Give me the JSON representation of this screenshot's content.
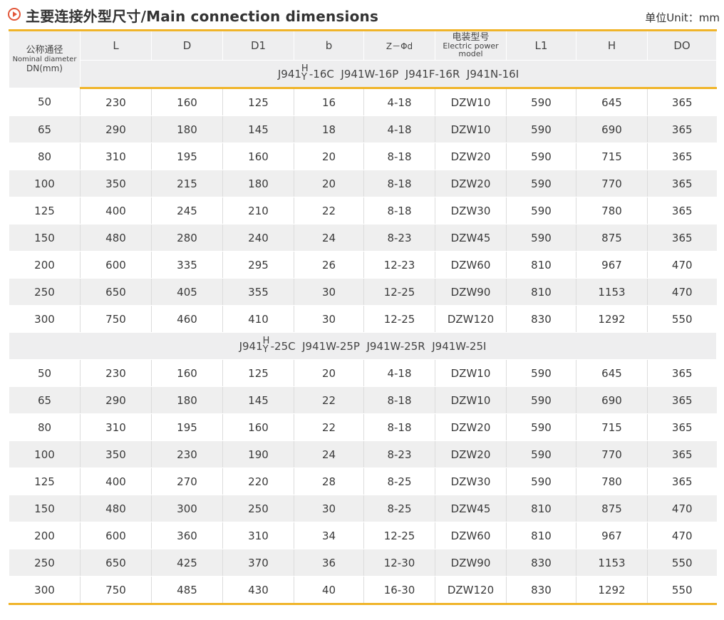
{
  "title": "主要连接外型尺寸/Main connection dimensions",
  "unit": "单位Unit：mm",
  "headers": {
    "dn_cn": "公称通径",
    "dn_en": "Nominal diameter",
    "dn_unit": "DN(mm)",
    "L": "L",
    "D": "D",
    "D1": "D1",
    "b": "b",
    "Z": "Z－Φd",
    "motor_cn": "电装型号",
    "motor_en": "Electric power model",
    "L1": "L1",
    "H": "H",
    "DO": "DO"
  },
  "groups": [
    {
      "model_prefix": "J941",
      "model_top": "H",
      "model_bot": "Y",
      "model_rest": "-16C  J941W-16P  J941F-16R  J941N-16I",
      "rows": [
        [
          "50",
          "230",
          "160",
          "125",
          "16",
          "4-18",
          "DZW10",
          "590",
          "645",
          "365"
        ],
        [
          "65",
          "290",
          "180",
          "145",
          "18",
          "4-18",
          "DZW10",
          "590",
          "690",
          "365"
        ],
        [
          "80",
          "310",
          "195",
          "160",
          "20",
          "8-18",
          "DZW20",
          "590",
          "715",
          "365"
        ],
        [
          "100",
          "350",
          "215",
          "180",
          "20",
          "8-18",
          "DZW20",
          "590",
          "770",
          "365"
        ],
        [
          "125",
          "400",
          "245",
          "210",
          "22",
          "8-18",
          "DZW30",
          "590",
          "780",
          "365"
        ],
        [
          "150",
          "480",
          "280",
          "240",
          "24",
          "8-23",
          "DZW45",
          "590",
          "875",
          "365"
        ],
        [
          "200",
          "600",
          "335",
          "295",
          "26",
          "12-23",
          "DZW60",
          "810",
          "967",
          "470"
        ],
        [
          "250",
          "650",
          "405",
          "355",
          "30",
          "12-25",
          "DZW90",
          "810",
          "1153",
          "470"
        ],
        [
          "300",
          "750",
          "460",
          "410",
          "30",
          "12-25",
          "DZW120",
          "830",
          "1292",
          "550"
        ]
      ]
    },
    {
      "model_prefix": "J941",
      "model_top": "H",
      "model_bot": "Y",
      "model_rest": "-25C  J941W-25P  J941W-25R  J941W-25I",
      "rows": [
        [
          "50",
          "230",
          "160",
          "125",
          "20",
          "4-18",
          "DZW10",
          "590",
          "645",
          "365"
        ],
        [
          "65",
          "290",
          "180",
          "145",
          "22",
          "8-18",
          "DZW10",
          "590",
          "690",
          "365"
        ],
        [
          "80",
          "310",
          "195",
          "160",
          "22",
          "8-18",
          "DZW20",
          "590",
          "715",
          "365"
        ],
        [
          "100",
          "350",
          "230",
          "190",
          "24",
          "8-23",
          "DZW20",
          "590",
          "770",
          "365"
        ],
        [
          "125",
          "400",
          "270",
          "220",
          "28",
          "8-25",
          "DZW30",
          "590",
          "780",
          "365"
        ],
        [
          "150",
          "480",
          "300",
          "250",
          "30",
          "8-25",
          "DZW45",
          "810",
          "875",
          "470"
        ],
        [
          "200",
          "600",
          "360",
          "310",
          "34",
          "12-25",
          "DZW60",
          "810",
          "967",
          "470"
        ],
        [
          "250",
          "650",
          "425",
          "370",
          "36",
          "12-30",
          "DZW90",
          "830",
          "1153",
          "550"
        ],
        [
          "300",
          "750",
          "485",
          "430",
          "40",
          "16-30",
          "DZW120",
          "830",
          "1292",
          "550"
        ]
      ]
    }
  ],
  "colors": {
    "accent_line": "#f0b429",
    "icon": "#e2573a",
    "band": "#efefef"
  }
}
